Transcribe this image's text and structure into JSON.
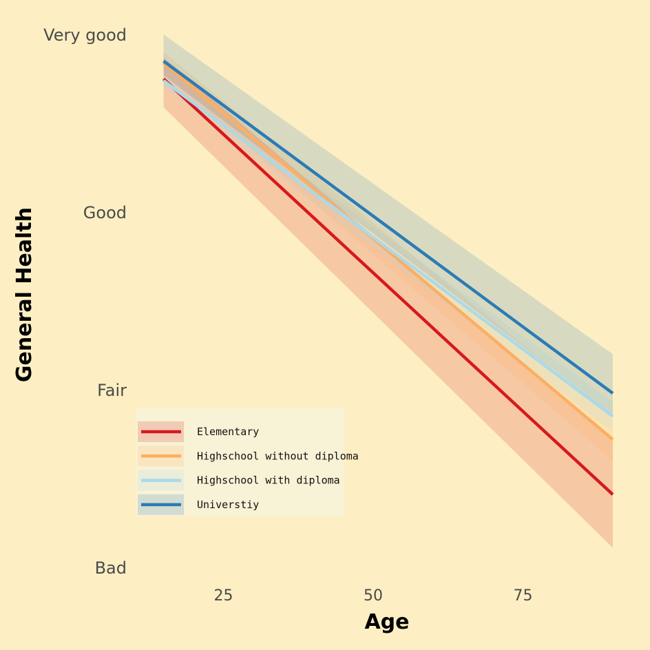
{
  "chart_data": {
    "type": "line",
    "xlabel": "Age",
    "ylabel": "General Health",
    "xlim": [
      10,
      90
    ],
    "ylim": [
      0,
      3
    ],
    "x_ticks": [
      25,
      50,
      75
    ],
    "y_tick_labels": [
      "Bad",
      "Fair",
      "Good",
      "Very good"
    ],
    "y_tick_values": [
      0,
      1,
      2,
      3
    ],
    "grid": false,
    "legend_position": "bottom-left",
    "series": [
      {
        "name": "Elementary",
        "color": "#d7191c",
        "x": [
          15,
          90
        ],
        "y": [
          2.75,
          0.41
        ],
        "ci_lower": [
          2.59,
          0.11
        ],
        "ci_upper": [
          2.87,
          0.72
        ]
      },
      {
        "name": "Highschool without diploma",
        "color": "#fdae61",
        "x": [
          15,
          90
        ],
        "y": [
          2.84,
          0.72
        ],
        "ci_lower": [
          2.78,
          0.6
        ],
        "ci_upper": [
          2.9,
          0.84
        ]
      },
      {
        "name": "Highschool with diploma",
        "color": "#abd9e9",
        "x": [
          15,
          90
        ],
        "y": [
          2.74,
          0.85
        ],
        "ci_lower": [
          2.7,
          0.76
        ],
        "ci_upper": [
          2.78,
          0.93
        ]
      },
      {
        "name": "Universtiy",
        "color": "#2c7bb6",
        "x": [
          15,
          90
        ],
        "y": [
          2.85,
          0.98
        ],
        "ci_lower": [
          2.77,
          0.86
        ],
        "ci_upper": [
          3.0,
          1.2
        ]
      }
    ]
  }
}
